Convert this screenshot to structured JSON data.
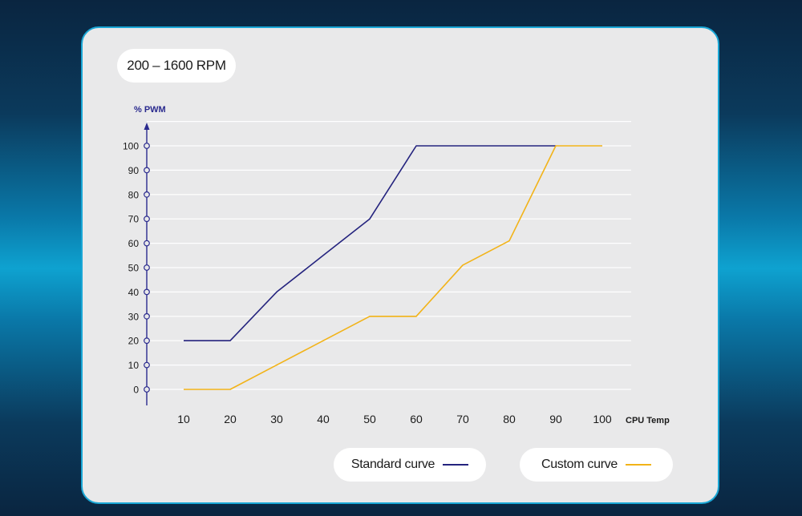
{
  "range_label": "200 – 1600 RPM",
  "chart_data": {
    "type": "line",
    "ylabel": "% PWM",
    "xlabel": "CPU Temp",
    "x": [
      10,
      20,
      30,
      40,
      50,
      60,
      70,
      80,
      90,
      100
    ],
    "xticks": [
      "10",
      "20",
      "30",
      "40",
      "50",
      "60",
      "70",
      "80",
      "90",
      "100"
    ],
    "yticks": [
      "0",
      "10",
      "20",
      "30",
      "40",
      "50",
      "60",
      "70",
      "80",
      "90",
      "100"
    ],
    "ylim": [
      0,
      100
    ],
    "grid": true,
    "series": [
      {
        "name": "Standard curve",
        "color": "#24237e",
        "points": [
          [
            10,
            20
          ],
          [
            20,
            20
          ],
          [
            30,
            40
          ],
          [
            40,
            55
          ],
          [
            50,
            70
          ],
          [
            60,
            100
          ],
          [
            90,
            100
          ]
        ]
      },
      {
        "name": "Custom curve",
        "color": "#f2b318",
        "points": [
          [
            10,
            0
          ],
          [
            20,
            0
          ],
          [
            30,
            10
          ],
          [
            40,
            20
          ],
          [
            50,
            30
          ],
          [
            60,
            30
          ],
          [
            70,
            51
          ],
          [
            80,
            61
          ],
          [
            90,
            100
          ],
          [
            100,
            100
          ]
        ]
      }
    ]
  }
}
